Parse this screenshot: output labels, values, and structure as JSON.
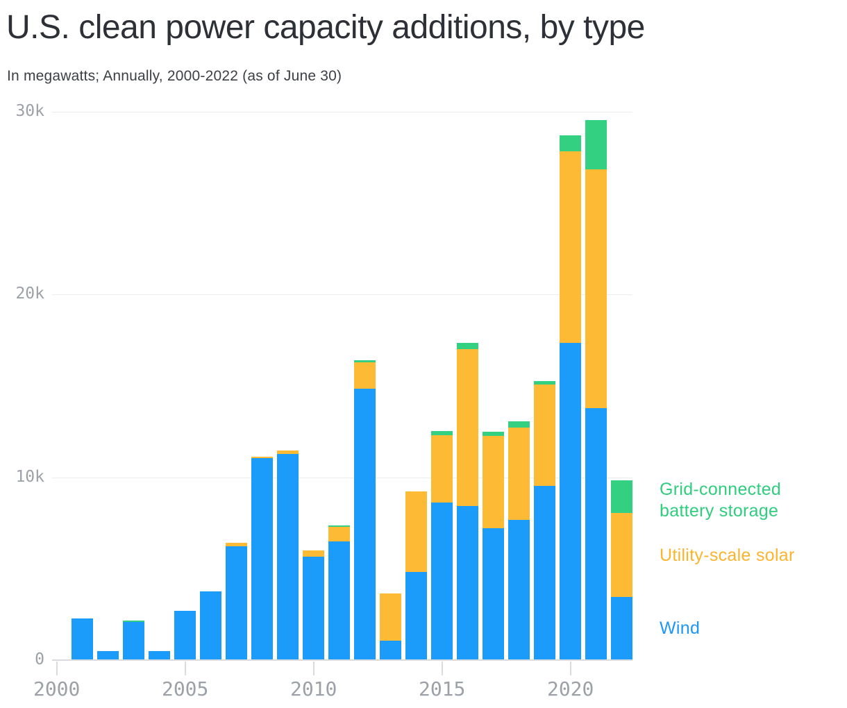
{
  "title": "U.S. clean power capacity additions, by type",
  "subtitle": "In megawatts; Annually, 2000-2022 (as of June 30)",
  "colors": {
    "wind": "#1b9cfa",
    "solar": "#fdba35",
    "battery": "#32d080",
    "gridline": "#ebecee",
    "axis": "#d9dbde",
    "tick_label": "#9ca1a8",
    "title_text": "#2d3036",
    "subtitle_text": "#3c4046"
  },
  "legend": [
    {
      "id": "battery",
      "label": "Grid-connected battery storage",
      "color": "#2fcd7d"
    },
    {
      "id": "solar",
      "label": "Utility-scale solar",
      "color": "#fcb42d"
    },
    {
      "id": "wind",
      "label": "Wind",
      "color": "#1e96f8"
    }
  ],
  "chart_data": {
    "type": "bar",
    "stacked": true,
    "title": "U.S. clean power capacity additions, by type",
    "unit": "megawatts",
    "xlabel": "",
    "ylabel": "",
    "ylim": [
      0,
      30000
    ],
    "grid": "horizontal",
    "legend_position": "right",
    "x": [
      2000,
      2001,
      2002,
      2003,
      2004,
      2005,
      2006,
      2007,
      2008,
      2009,
      2010,
      2011,
      2012,
      2013,
      2014,
      2015,
      2016,
      2017,
      2018,
      2019,
      2020,
      2021,
      2022
    ],
    "series": [
      {
        "name": "Wind",
        "color": "#1b9cfa",
        "values": [
          0,
          2280,
          480,
          2100,
          480,
          2710,
          3760,
          6220,
          11040,
          11280,
          5670,
          6480,
          14840,
          1050,
          4820,
          8610,
          8440,
          7200,
          7690,
          9520,
          17350,
          13770,
          3440
        ]
      },
      {
        "name": "Utility-scale solar",
        "color": "#fdba35",
        "values": [
          0,
          0,
          0,
          0,
          0,
          0,
          0,
          190,
          80,
          180,
          330,
          815,
          1460,
          2610,
          4420,
          3710,
          8580,
          5080,
          5050,
          5560,
          10470,
          13070,
          4620
        ]
      },
      {
        "name": "Grid-connected battery storage",
        "color": "#32d080",
        "values": [
          0,
          0,
          0,
          80,
          0,
          0,
          0,
          0,
          0,
          0,
          0,
          60,
          115,
          0,
          0,
          215,
          330,
          215,
          305,
          180,
          885,
          2715,
          1775
        ]
      }
    ],
    "y_ticks": [
      {
        "value": 0,
        "label": "0"
      },
      {
        "value": 10000,
        "label": "10k"
      },
      {
        "value": 20000,
        "label": "20k"
      },
      {
        "value": 30000,
        "label": "30k"
      }
    ],
    "x_ticks": [
      {
        "value": 2000,
        "label": "2000"
      },
      {
        "value": 2005,
        "label": "2005"
      },
      {
        "value": 2010,
        "label": "2010"
      },
      {
        "value": 2015,
        "label": "2015"
      },
      {
        "value": 2020,
        "label": "2020"
      }
    ]
  }
}
